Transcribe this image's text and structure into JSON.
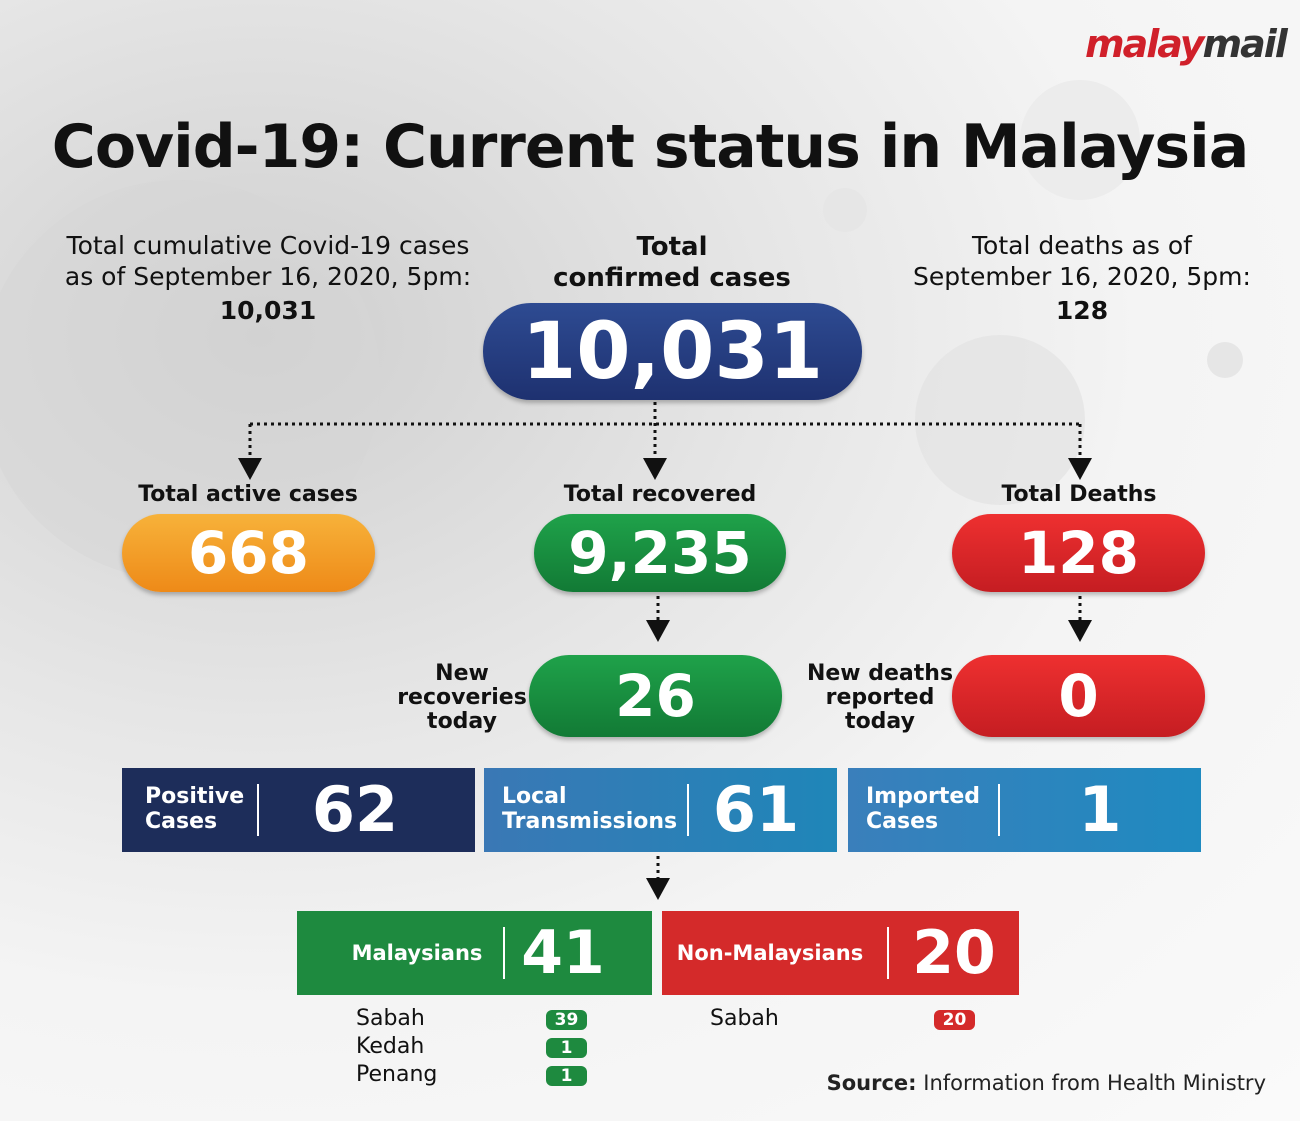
{
  "brand": {
    "part1": "malay",
    "part2": "mail"
  },
  "title": "Covid-19: Current status in Malaysia",
  "left_note": {
    "lines": [
      "Total cumulative Covid-19 cases",
      "as of September 16, 2020, 5pm:"
    ],
    "value": "10,031"
  },
  "center": {
    "label_lines": [
      "Total",
      "confirmed cases"
    ],
    "value": "10,031"
  },
  "right_note": {
    "lines": [
      "Total deaths as of",
      "September 16, 2020, 5pm:"
    ],
    "value": "128"
  },
  "active": {
    "label": "Total active cases",
    "value": "668"
  },
  "recovered": {
    "label": "Total recovered",
    "value": "9,235"
  },
  "deaths": {
    "label": "Total Deaths",
    "value": "128"
  },
  "new_recoveries": {
    "label_lines": [
      "New",
      "recoveries",
      "today"
    ],
    "value": "26"
  },
  "new_deaths": {
    "label_lines": [
      "New deaths",
      "reported",
      "today"
    ],
    "value": "0"
  },
  "cases": [
    {
      "label_lines": [
        "Positive",
        "Cases"
      ],
      "value": "62"
    },
    {
      "label_lines": [
        "Local",
        "Transmissions"
      ],
      "value": "61"
    },
    {
      "label_lines": [
        "Imported",
        "Cases"
      ],
      "value": "1"
    }
  ],
  "malaysians": {
    "label": "Malaysians",
    "value": "41",
    "states": [
      {
        "name": "Sabah",
        "value": "39"
      },
      {
        "name": "Kedah",
        "value": "1"
      },
      {
        "name": "Penang",
        "value": "1"
      }
    ]
  },
  "non_malaysians": {
    "label": "Non-Malaysians",
    "value": "20",
    "states": [
      {
        "name": "Sabah",
        "value": "20"
      }
    ]
  },
  "source": {
    "label": "Source:",
    "text": "Information from Health Ministry"
  }
}
